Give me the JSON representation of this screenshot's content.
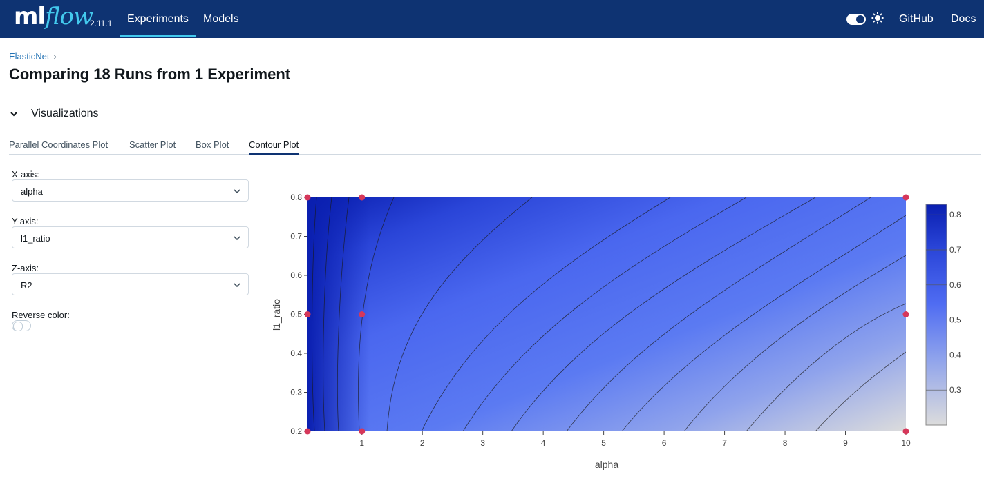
{
  "header": {
    "logo_ml": "ml",
    "logo_flow": "flow",
    "version": "2.11.1",
    "nav": [
      "Experiments",
      "Models"
    ],
    "right_links": [
      "GitHub",
      "Docs"
    ]
  },
  "breadcrumb": {
    "experiment": "ElasticNet",
    "separator": "›"
  },
  "page_title": "Comparing 18 Runs from 1 Experiment",
  "section": {
    "label": "Visualizations"
  },
  "tabs": [
    "Parallel Coordinates Plot",
    "Scatter Plot",
    "Box Plot",
    "Contour Plot"
  ],
  "active_tab": "Contour Plot",
  "controls": {
    "x_axis": {
      "label": "X-axis:",
      "value": "alpha"
    },
    "y_axis": {
      "label": "Y-axis:",
      "value": "l1_ratio"
    },
    "z_axis": {
      "label": "Z-axis:",
      "value": "R2"
    },
    "reverse_color": {
      "label": "Reverse color:",
      "enabled": false
    }
  },
  "colors": {
    "navbar": "#0e3372",
    "accent": "#43c9ed",
    "link": "#2272b4",
    "high": "#0a1fb0",
    "mid": "#4f6cf2",
    "low": "#dcdcdc",
    "point": "#d6375a"
  },
  "icons": [
    "sun-icon",
    "chevron-down-icon",
    "caret-down-icon"
  ],
  "chart_data": {
    "type": "contour",
    "xlabel": "alpha",
    "ylabel": "l1_ratio",
    "xlim": [
      0.1,
      10
    ],
    "ylim": [
      0.2,
      0.8
    ],
    "x_ticks": [
      "1",
      "2",
      "3",
      "4",
      "5",
      "6",
      "7",
      "8",
      "9",
      "10"
    ],
    "y_ticks": [
      "0.2",
      "0.3",
      "0.4",
      "0.5",
      "0.6",
      "0.7",
      "0.8"
    ],
    "colorbar_ticks": [
      "0.3",
      "0.4",
      "0.5",
      "0.6",
      "0.7",
      "0.8"
    ],
    "colorbar_range": [
      0.2,
      0.83
    ],
    "points": [
      {
        "x": 0.1,
        "y": 0.2
      },
      {
        "x": 0.1,
        "y": 0.5
      },
      {
        "x": 0.1,
        "y": 0.8
      },
      {
        "x": 1,
        "y": 0.2
      },
      {
        "x": 1,
        "y": 0.5
      },
      {
        "x": 1,
        "y": 0.8
      },
      {
        "x": 10,
        "y": 0.2
      },
      {
        "x": 10,
        "y": 0.5
      },
      {
        "x": 10,
        "y": 0.8
      }
    ]
  }
}
